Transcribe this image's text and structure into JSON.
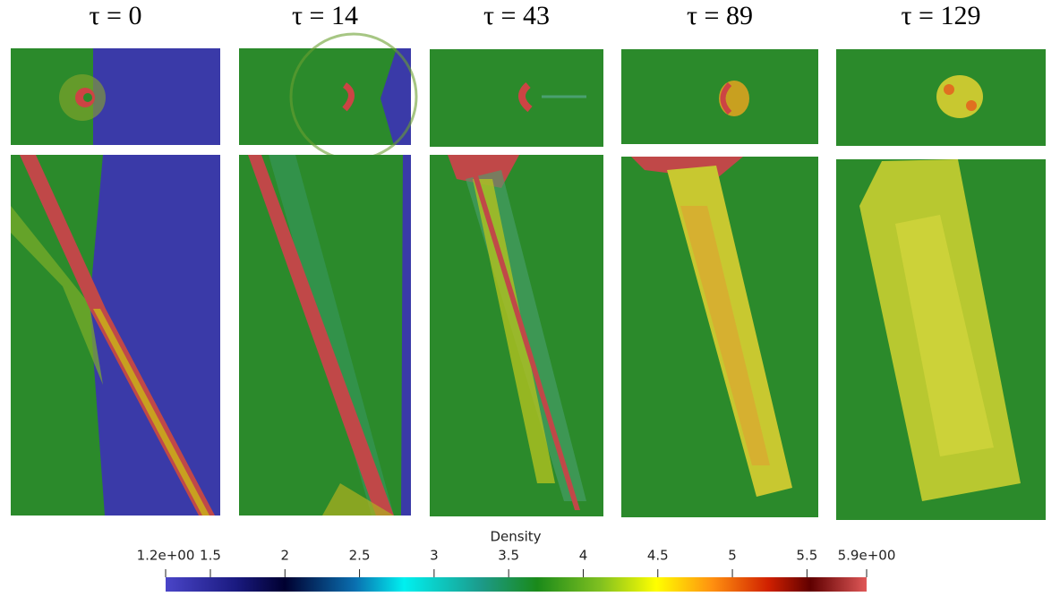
{
  "panels": [
    {
      "label": "τ = 0"
    },
    {
      "label": "τ = 14"
    },
    {
      "label": "τ = 43"
    },
    {
      "label": "τ = 89"
    },
    {
      "label": "τ = 129"
    }
  ],
  "colorbar": {
    "title": "Density",
    "range": [
      1.2,
      5.9
    ],
    "ticks": [
      {
        "value": 1.2,
        "label": "1.2e+00"
      },
      1.5,
      2,
      2.5,
      3,
      3.5,
      4,
      4.5,
      5,
      5.5,
      {
        "value": 5.9,
        "label": "5.9e+00"
      }
    ]
  }
}
